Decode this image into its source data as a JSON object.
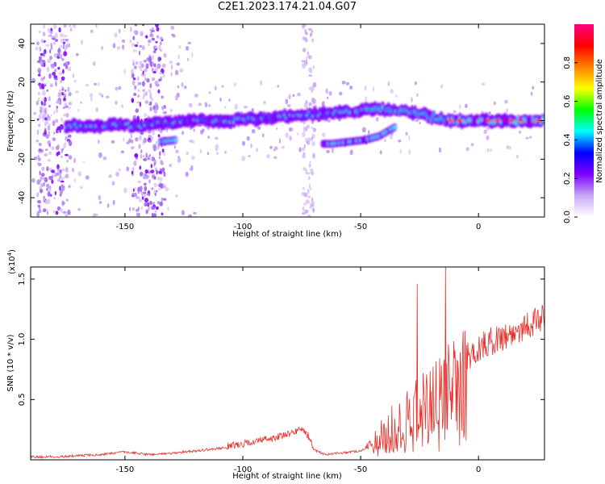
{
  "title": "C2E1.2023.174.21.04.G07",
  "chart_data": [
    {
      "type": "heatmap",
      "xlabel": "Height of straight line (km)",
      "ylabel": "Frequency (Hz)",
      "xlim": [
        -190,
        28
      ],
      "ylim": [
        -50,
        50
      ],
      "x_ticks": [
        -150,
        -100,
        -50,
        0
      ],
      "y_ticks": [
        -40,
        -20,
        0,
        20,
        40
      ],
      "colorbar": {
        "label": "Normalized spectral amplitude",
        "range": [
          0,
          1
        ],
        "ticks": [
          "0.0",
          "0.2",
          "0.4",
          "0.6",
          "0.8"
        ],
        "colors": [
          "#ffffff",
          "#c9a8f5",
          "#7f00ff",
          "#0000ff",
          "#00ffff",
          "#00ff00",
          "#ffff00",
          "#ff8000",
          "#ff0000",
          "#ff0080"
        ]
      },
      "ridges": [
        {
          "x": [
            -175,
            -150,
            -145,
            -125,
            -110,
            -90,
            -75,
            -60,
            -45,
            -30,
            -20,
            -10,
            0,
            10,
            20,
            28
          ],
          "y": [
            -3,
            -2,
            -3,
            0,
            0,
            1,
            3,
            4,
            6,
            5,
            2,
            0,
            0,
            0,
            0,
            0
          ]
        },
        {
          "x": [
            -66,
            -62,
            -55,
            -48,
            -42,
            -35
          ],
          "y": [
            -12,
            -12,
            -11,
            -10,
            -8,
            -3
          ]
        },
        {
          "x": [
            -135,
            -128
          ],
          "y": [
            -11,
            -10
          ]
        }
      ],
      "streaks": [
        -180,
        -140,
        -72
      ]
    },
    {
      "type": "line",
      "xlabel": "Height of straight line (km)",
      "ylabel": "SNR (10 * v/v)",
      "y_multiplier": "(x10",
      "y_multiplier_exp": "4",
      "y_multiplier_close": ")",
      "xlim": [
        -190,
        28
      ],
      "ylim": [
        0,
        1.6
      ],
      "x_ticks": [
        -150,
        -100,
        -50,
        0
      ],
      "y_ticks": [
        "0.5",
        "1.0",
        "1.5"
      ],
      "series": [
        {
          "color": "#e8302a",
          "x": [
            -190,
            -180,
            -170,
            -160,
            -150,
            -145,
            -140,
            -130,
            -120,
            -110,
            -100,
            -95,
            -90,
            -85,
            -80,
            -75,
            -72,
            -70,
            -65,
            -60,
            -55,
            -50,
            -45,
            -42,
            -40,
            -35,
            -30,
            -25,
            -20,
            -15,
            -10,
            -5,
            0,
            5,
            10,
            15,
            20,
            25,
            28
          ],
          "y": [
            0.02,
            0.02,
            0.03,
            0.04,
            0.06,
            0.05,
            0.04,
            0.05,
            0.07,
            0.09,
            0.12,
            0.14,
            0.16,
            0.18,
            0.2,
            0.25,
            0.18,
            0.08,
            0.04,
            0.05,
            0.06,
            0.07,
            0.13,
            0.25,
            0.3,
            0.38,
            0.45,
            0.55,
            0.62,
            0.68,
            0.75,
            0.85,
            0.92,
            0.98,
            1.02,
            1.05,
            1.12,
            1.15,
            1.2
          ],
          "spikes": [
            {
              "x": -26,
              "y": 1.46
            },
            {
              "x": -14,
              "y": 1.6
            }
          ]
        }
      ]
    }
  ]
}
